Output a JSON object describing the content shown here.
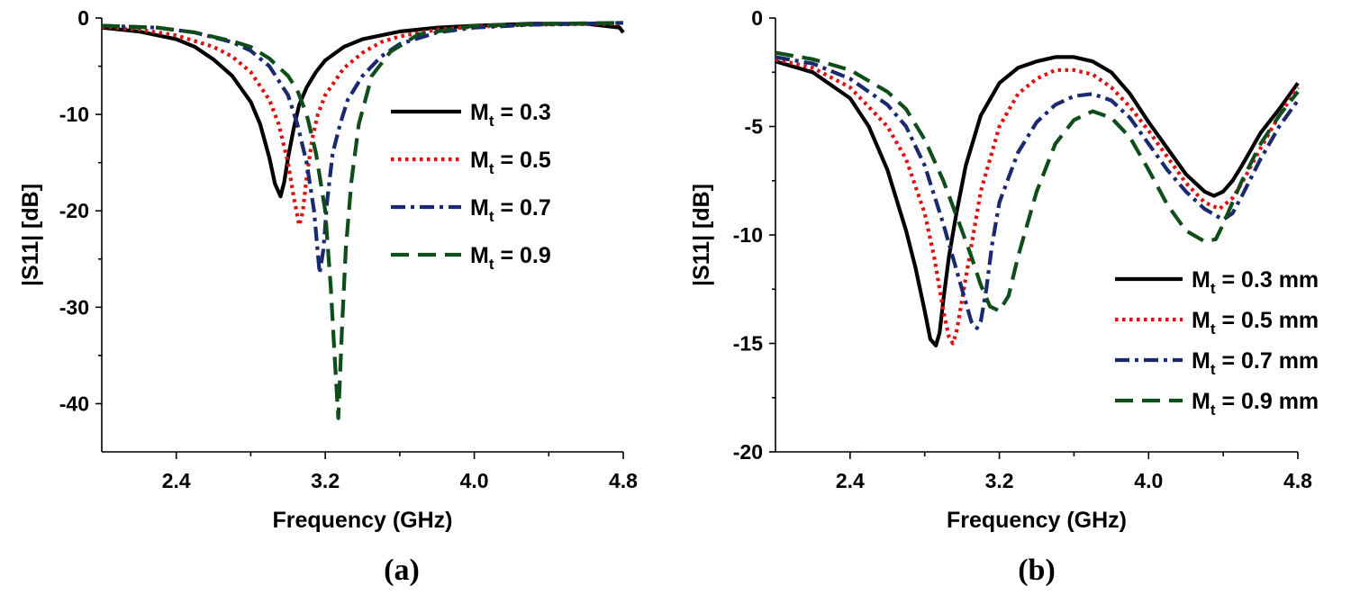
{
  "chart_data": [
    {
      "type": "line",
      "panel_label": "(a)",
      "xlabel": "Frequency (GHz)",
      "ylabel": "|S11| [dB]",
      "xlim": [
        2.0,
        4.8
      ],
      "ylim": [
        -45,
        0
      ],
      "xticks": [
        2.4,
        3.2,
        4.0,
        4.8
      ],
      "xtick_labels": [
        "2.4",
        "3.2",
        "4.0",
        "4.8"
      ],
      "yticks": [
        0,
        -10,
        -20,
        -30,
        -40
      ],
      "ytick_labels": [
        "0",
        "-10",
        "-20",
        "-30",
        "-40"
      ],
      "legend_position": "center-right",
      "series": [
        {
          "name": "M",
          "sub": "t",
          "suffix": " = 0.3",
          "color": "#000000",
          "dash": "solid",
          "x": [
            2.0,
            2.2,
            2.4,
            2.5,
            2.6,
            2.7,
            2.8,
            2.85,
            2.9,
            2.93,
            2.96,
            2.98,
            3.0,
            3.03,
            3.06,
            3.1,
            3.15,
            3.2,
            3.3,
            3.4,
            3.6,
            3.8,
            4.0,
            4.3,
            4.6,
            4.78,
            4.8
          ],
          "y": [
            -1.0,
            -1.4,
            -2.2,
            -3.0,
            -4.3,
            -6.0,
            -8.7,
            -11.0,
            -14.5,
            -17.2,
            -18.5,
            -17.0,
            -14.5,
            -11.5,
            -9.0,
            -7.2,
            -5.6,
            -4.4,
            -3.0,
            -2.2,
            -1.4,
            -1.0,
            -0.8,
            -0.6,
            -0.6,
            -1.0,
            -1.5
          ]
        },
        {
          "name": "M",
          "sub": "t",
          "suffix": " = 0.5",
          "color": "#e01010",
          "dash": "dotted",
          "x": [
            2.0,
            2.2,
            2.4,
            2.6,
            2.7,
            2.8,
            2.9,
            2.95,
            3.0,
            3.03,
            3.06,
            3.08,
            3.1,
            3.13,
            3.16,
            3.2,
            3.3,
            3.4,
            3.5,
            3.6,
            3.8,
            4.0,
            4.3,
            4.8
          ],
          "y": [
            -0.9,
            -1.2,
            -1.8,
            -3.0,
            -4.0,
            -5.6,
            -8.5,
            -11.0,
            -15.0,
            -18.5,
            -21.5,
            -20.0,
            -16.5,
            -12.5,
            -10.0,
            -8.0,
            -5.2,
            -3.6,
            -2.5,
            -1.9,
            -1.2,
            -0.9,
            -0.7,
            -0.6
          ]
        },
        {
          "name": "M",
          "sub": "t",
          "suffix": " = 0.7",
          "color": "#1a2a6e",
          "dash": "dashdot",
          "x": [
            2.0,
            2.3,
            2.5,
            2.7,
            2.8,
            2.9,
            3.0,
            3.05,
            3.1,
            3.14,
            3.17,
            3.19,
            3.21,
            3.24,
            3.28,
            3.32,
            3.4,
            3.5,
            3.6,
            3.8,
            4.0,
            4.3,
            4.8
          ],
          "y": [
            -0.8,
            -1.0,
            -1.5,
            -2.5,
            -3.4,
            -5.0,
            -8.0,
            -11.0,
            -15.0,
            -20.0,
            -26.5,
            -24.0,
            -19.0,
            -14.0,
            -11.0,
            -8.5,
            -6.0,
            -4.0,
            -2.7,
            -1.5,
            -1.0,
            -0.7,
            -0.5
          ]
        },
        {
          "name": "M",
          "sub": "t",
          "suffix": " = 0.9",
          "color": "#0f4d1a",
          "dash": "dashed",
          "x": [
            2.0,
            2.3,
            2.5,
            2.7,
            2.8,
            2.9,
            3.0,
            3.05,
            3.1,
            3.15,
            3.2,
            3.23,
            3.25,
            3.27,
            3.29,
            3.31,
            3.34,
            3.38,
            3.45,
            3.55,
            3.7,
            4.0,
            4.4,
            4.8
          ],
          "y": [
            -0.8,
            -1.0,
            -1.5,
            -2.4,
            -3.0,
            -4.2,
            -6.0,
            -7.5,
            -10.0,
            -14.0,
            -20.0,
            -28.0,
            -35.0,
            -41.5,
            -32.0,
            -24.0,
            -17.0,
            -11.0,
            -6.0,
            -3.5,
            -1.7,
            -0.8,
            -0.6,
            -0.5
          ]
        }
      ]
    },
    {
      "type": "line",
      "panel_label": "(b)",
      "xlabel": "Frequency (GHz)",
      "ylabel": "|S11| [dB]",
      "xlim": [
        2.0,
        4.8
      ],
      "ylim": [
        -20,
        0
      ],
      "xticks": [
        2.4,
        3.2,
        4.0,
        4.8
      ],
      "xtick_labels": [
        "2.4",
        "3.2",
        "4.0",
        "4.8"
      ],
      "yticks": [
        0,
        -5,
        -10,
        -15,
        -20
      ],
      "ytick_labels": [
        "0",
        "-5",
        "-10",
        "-15",
        "-20"
      ],
      "legend_position": "bottom-right",
      "series": [
        {
          "name": "M",
          "sub": "t",
          "suffix": " = 0.3 mm",
          "color": "#000000",
          "dash": "solid",
          "x": [
            2.0,
            2.2,
            2.4,
            2.5,
            2.6,
            2.7,
            2.75,
            2.8,
            2.83,
            2.86,
            2.88,
            2.9,
            2.93,
            2.97,
            3.02,
            3.1,
            3.2,
            3.3,
            3.4,
            3.5,
            3.6,
            3.7,
            3.8,
            3.9,
            4.0,
            4.1,
            4.2,
            4.3,
            4.35,
            4.4,
            4.45,
            4.5,
            4.6,
            4.7,
            4.8
          ],
          "y": [
            -2.0,
            -2.5,
            -3.7,
            -5.0,
            -7.0,
            -9.8,
            -11.5,
            -13.5,
            -14.8,
            -15.1,
            -14.5,
            -13.0,
            -11.0,
            -9.0,
            -6.8,
            -4.5,
            -3.0,
            -2.3,
            -2.0,
            -1.8,
            -1.8,
            -2.0,
            -2.5,
            -3.5,
            -4.8,
            -6.0,
            -7.2,
            -8.0,
            -8.2,
            -8.0,
            -7.5,
            -6.8,
            -5.3,
            -4.2,
            -3.0
          ]
        },
        {
          "name": "M",
          "sub": "t",
          "suffix": " = 0.5 mm",
          "color": "#e01010",
          "dash": "dotted",
          "x": [
            2.0,
            2.2,
            2.4,
            2.6,
            2.7,
            2.8,
            2.85,
            2.9,
            2.93,
            2.95,
            2.97,
            3.0,
            3.05,
            3.1,
            3.2,
            3.3,
            3.4,
            3.5,
            3.6,
            3.7,
            3.8,
            3.9,
            4.0,
            4.1,
            4.2,
            4.3,
            4.38,
            4.45,
            4.5,
            4.6,
            4.7,
            4.8
          ],
          "y": [
            -1.9,
            -2.3,
            -3.2,
            -5.0,
            -6.5,
            -9.0,
            -11.0,
            -13.5,
            -14.7,
            -15.0,
            -14.5,
            -13.0,
            -10.5,
            -8.0,
            -5.0,
            -3.5,
            -2.8,
            -2.4,
            -2.4,
            -2.6,
            -3.2,
            -4.1,
            -5.2,
            -6.4,
            -7.6,
            -8.5,
            -8.8,
            -8.3,
            -7.6,
            -6.0,
            -4.5,
            -3.2
          ]
        },
        {
          "name": "M",
          "sub": "t",
          "suffix": " = 0.7 mm",
          "color": "#1a2a6e",
          "dash": "dashdot",
          "x": [
            2.0,
            2.2,
            2.4,
            2.6,
            2.7,
            2.8,
            2.9,
            3.0,
            3.05,
            3.08,
            3.1,
            3.13,
            3.16,
            3.2,
            3.3,
            3.4,
            3.5,
            3.6,
            3.7,
            3.8,
            3.9,
            4.0,
            4.1,
            4.2,
            4.3,
            4.4,
            4.45,
            4.5,
            4.6,
            4.7,
            4.8
          ],
          "y": [
            -1.8,
            -2.1,
            -2.8,
            -4.0,
            -5.0,
            -6.8,
            -9.5,
            -12.5,
            -14.0,
            -14.3,
            -14.0,
            -12.5,
            -10.5,
            -8.5,
            -6.2,
            -4.8,
            -4.0,
            -3.6,
            -3.5,
            -3.8,
            -4.6,
            -5.8,
            -7.0,
            -8.0,
            -8.8,
            -9.3,
            -9.0,
            -8.2,
            -6.5,
            -5.0,
            -3.8
          ]
        },
        {
          "name": "M",
          "sub": "t",
          "suffix": " = 0.9 mm",
          "color": "#0f4d1a",
          "dash": "dashed",
          "x": [
            2.0,
            2.2,
            2.4,
            2.6,
            2.7,
            2.8,
            2.9,
            3.0,
            3.05,
            3.1,
            3.15,
            3.2,
            3.25,
            3.3,
            3.4,
            3.5,
            3.6,
            3.7,
            3.8,
            3.9,
            4.0,
            4.1,
            4.2,
            4.3,
            4.36,
            4.4,
            4.45,
            4.5,
            4.6,
            4.7,
            4.8
          ],
          "y": [
            -1.6,
            -1.9,
            -2.4,
            -3.4,
            -4.2,
            -5.6,
            -7.5,
            -9.8,
            -11.0,
            -12.3,
            -13.3,
            -13.5,
            -12.8,
            -11.0,
            -8.0,
            -5.8,
            -4.7,
            -4.3,
            -4.6,
            -5.5,
            -7.0,
            -8.6,
            -9.8,
            -10.3,
            -10.2,
            -9.5,
            -8.5,
            -7.5,
            -5.8,
            -4.5,
            -3.4
          ]
        }
      ]
    }
  ]
}
